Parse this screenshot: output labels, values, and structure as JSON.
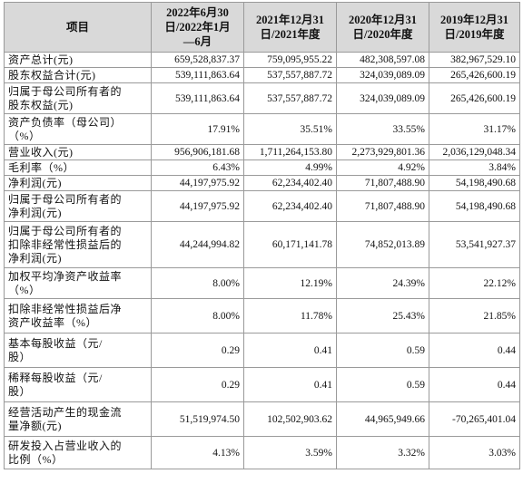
{
  "table": {
    "headers": [
      "项目",
      "2022年6月30\n日/2022年1月\n—6月",
      "2021年12月31\n日/2021年度",
      "2020年12月31\n日/2020年度",
      "2019年12月31\n日/2019年度"
    ],
    "rows": [
      {
        "label": "资产总计(元)",
        "values": [
          "659,528,837.37",
          "759,095,955.22",
          "482,308,597.08",
          "382,967,529.10"
        ]
      },
      {
        "label": "股东权益合计(元)",
        "values": [
          "539,111,863.64",
          "537,557,887.72",
          "324,039,089.09",
          "265,426,600.19"
        ]
      },
      {
        "label": "归属于母公司所有者的\n股东权益(元)",
        "values": [
          "539,111,863.64",
          "537,557,887.72",
          "324,039,089.09",
          "265,426,600.19"
        ]
      },
      {
        "label": "资产负债率（母公司）\n（%）",
        "values": [
          "17.91%",
          "35.51%",
          "33.55%",
          "31.17%"
        ]
      },
      {
        "label": "营业收入(元)",
        "values": [
          "956,906,181.68",
          "1,711,264,153.80",
          "2,273,929,801.36",
          "2,036,129,048.34"
        ]
      },
      {
        "label": "毛利率（%）",
        "values": [
          "6.43%",
          "4.99%",
          "4.92%",
          "3.84%"
        ]
      },
      {
        "label": "净利润(元)",
        "values": [
          "44,197,975.92",
          "62,234,402.40",
          "71,807,488.90",
          "54,198,490.68"
        ]
      },
      {
        "label": "归属于母公司所有者的\n净利润(元)",
        "values": [
          "44,197,975.92",
          "62,234,402.40",
          "71,807,488.90",
          "54,198,490.68"
        ]
      },
      {
        "label": "归属于母公司所有者的\n扣除非经常性损益后的\n净利润(元)",
        "values": [
          "44,244,994.82",
          "60,171,141.78",
          "74,852,013.89",
          "53,541,927.37"
        ]
      },
      {
        "label": "加权平均净资产收益率\n（%）",
        "values": [
          "8.00%",
          "12.19%",
          "24.39%",
          "22.12%"
        ]
      },
      {
        "label": "扣除非经常性损益后净\n资产收益率（%）",
        "values": [
          "8.00%",
          "11.78%",
          "25.43%",
          "21.85%"
        ]
      },
      {
        "label": "基本每股收益（元/\n股）",
        "values": [
          "0.29",
          "0.41",
          "0.59",
          "0.44"
        ]
      },
      {
        "label": "稀释每股收益（元/\n股）",
        "values": [
          "0.29",
          "0.41",
          "0.59",
          "0.44"
        ]
      },
      {
        "label": "经营活动产生的现金流\n量净额(元)",
        "values": [
          "51,519,974.50",
          "102,502,903.62",
          "44,965,949.66",
          "-70,265,401.04"
        ]
      },
      {
        "label": "研发投入占营业收入的\n比例（%）",
        "values": [
          "4.13%",
          "3.59%",
          "3.32%",
          "3.03%"
        ]
      }
    ]
  }
}
